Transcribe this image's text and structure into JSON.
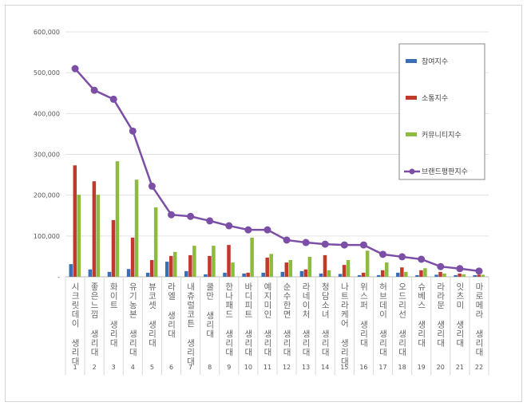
{
  "chart_data": {
    "type": "bar",
    "title": "",
    "xlabel": "",
    "ylabel": "",
    "ylim": [
      0,
      600000
    ],
    "yticks": [
      "-",
      "100,000",
      "200,000",
      "300,000",
      "400,000",
      "500,000",
      "600,000"
    ],
    "grid": true,
    "legend_position": "right",
    "categories": [
      "시크릿데이 생리대",
      "좋은느낌 생리대",
      "화이트 생리대",
      "유기농본 생리대",
      "뷰코셋 생리대",
      "라엘 생리대",
      "내츄럴코튼 생리대",
      "쿨만 생리대",
      "한나패드 생리대",
      "바디피트 생리대",
      "예지미인 생리대",
      "순수한면 생리대",
      "라네이처 생리대",
      "청담소녀 생리대",
      "나트라케어 생리대",
      "위스퍼 생리대",
      "허브데이 생리대",
      "오드리선 생리대",
      "슈베스 생리대",
      "라라문 생리대",
      "잇츠미 생리대",
      "마로메라 생리대"
    ],
    "ranks": [
      "1",
      "2",
      "3",
      "4",
      "5",
      "6",
      "7",
      "8",
      "9",
      "10",
      "11",
      "12",
      "13",
      "14",
      "15",
      "16",
      "17",
      "18",
      "19",
      "20",
      "21",
      "22"
    ],
    "series": [
      {
        "name": "참여지수",
        "type": "bar",
        "color": "#3a6fb5",
        "values": [
          31000,
          18000,
          12000,
          19000,
          10000,
          37000,
          14000,
          6000,
          10000,
          8000,
          10000,
          12000,
          14000,
          8000,
          7000,
          4000,
          4000,
          10000,
          4000,
          5000,
          4000,
          4000
        ]
      },
      {
        "name": "소통지수",
        "type": "bar",
        "color": "#c0392b",
        "values": [
          273000,
          234000,
          139000,
          96000,
          41000,
          51000,
          53000,
          51000,
          78000,
          10000,
          47000,
          35000,
          18000,
          53000,
          29000,
          10000,
          16000,
          23000,
          16000,
          12000,
          8000,
          5000
        ]
      },
      {
        "name": "커뮤니티지수",
        "type": "bar",
        "color": "#8dbb3f",
        "values": [
          201000,
          201000,
          283000,
          238000,
          170000,
          61000,
          76000,
          76000,
          35000,
          96000,
          56000,
          41000,
          49000,
          16000,
          41000,
          64000,
          35000,
          12000,
          21000,
          8000,
          6000,
          5000
        ]
      },
      {
        "name": "브랜드평판지수",
        "type": "line",
        "color": "#7b4fa6",
        "values": [
          510000,
          457000,
          435000,
          357000,
          222000,
          152000,
          148000,
          137000,
          125000,
          115000,
          115000,
          90000,
          84000,
          80000,
          78000,
          78000,
          55000,
          49000,
          43000,
          25000,
          20000,
          14000
        ]
      }
    ]
  }
}
